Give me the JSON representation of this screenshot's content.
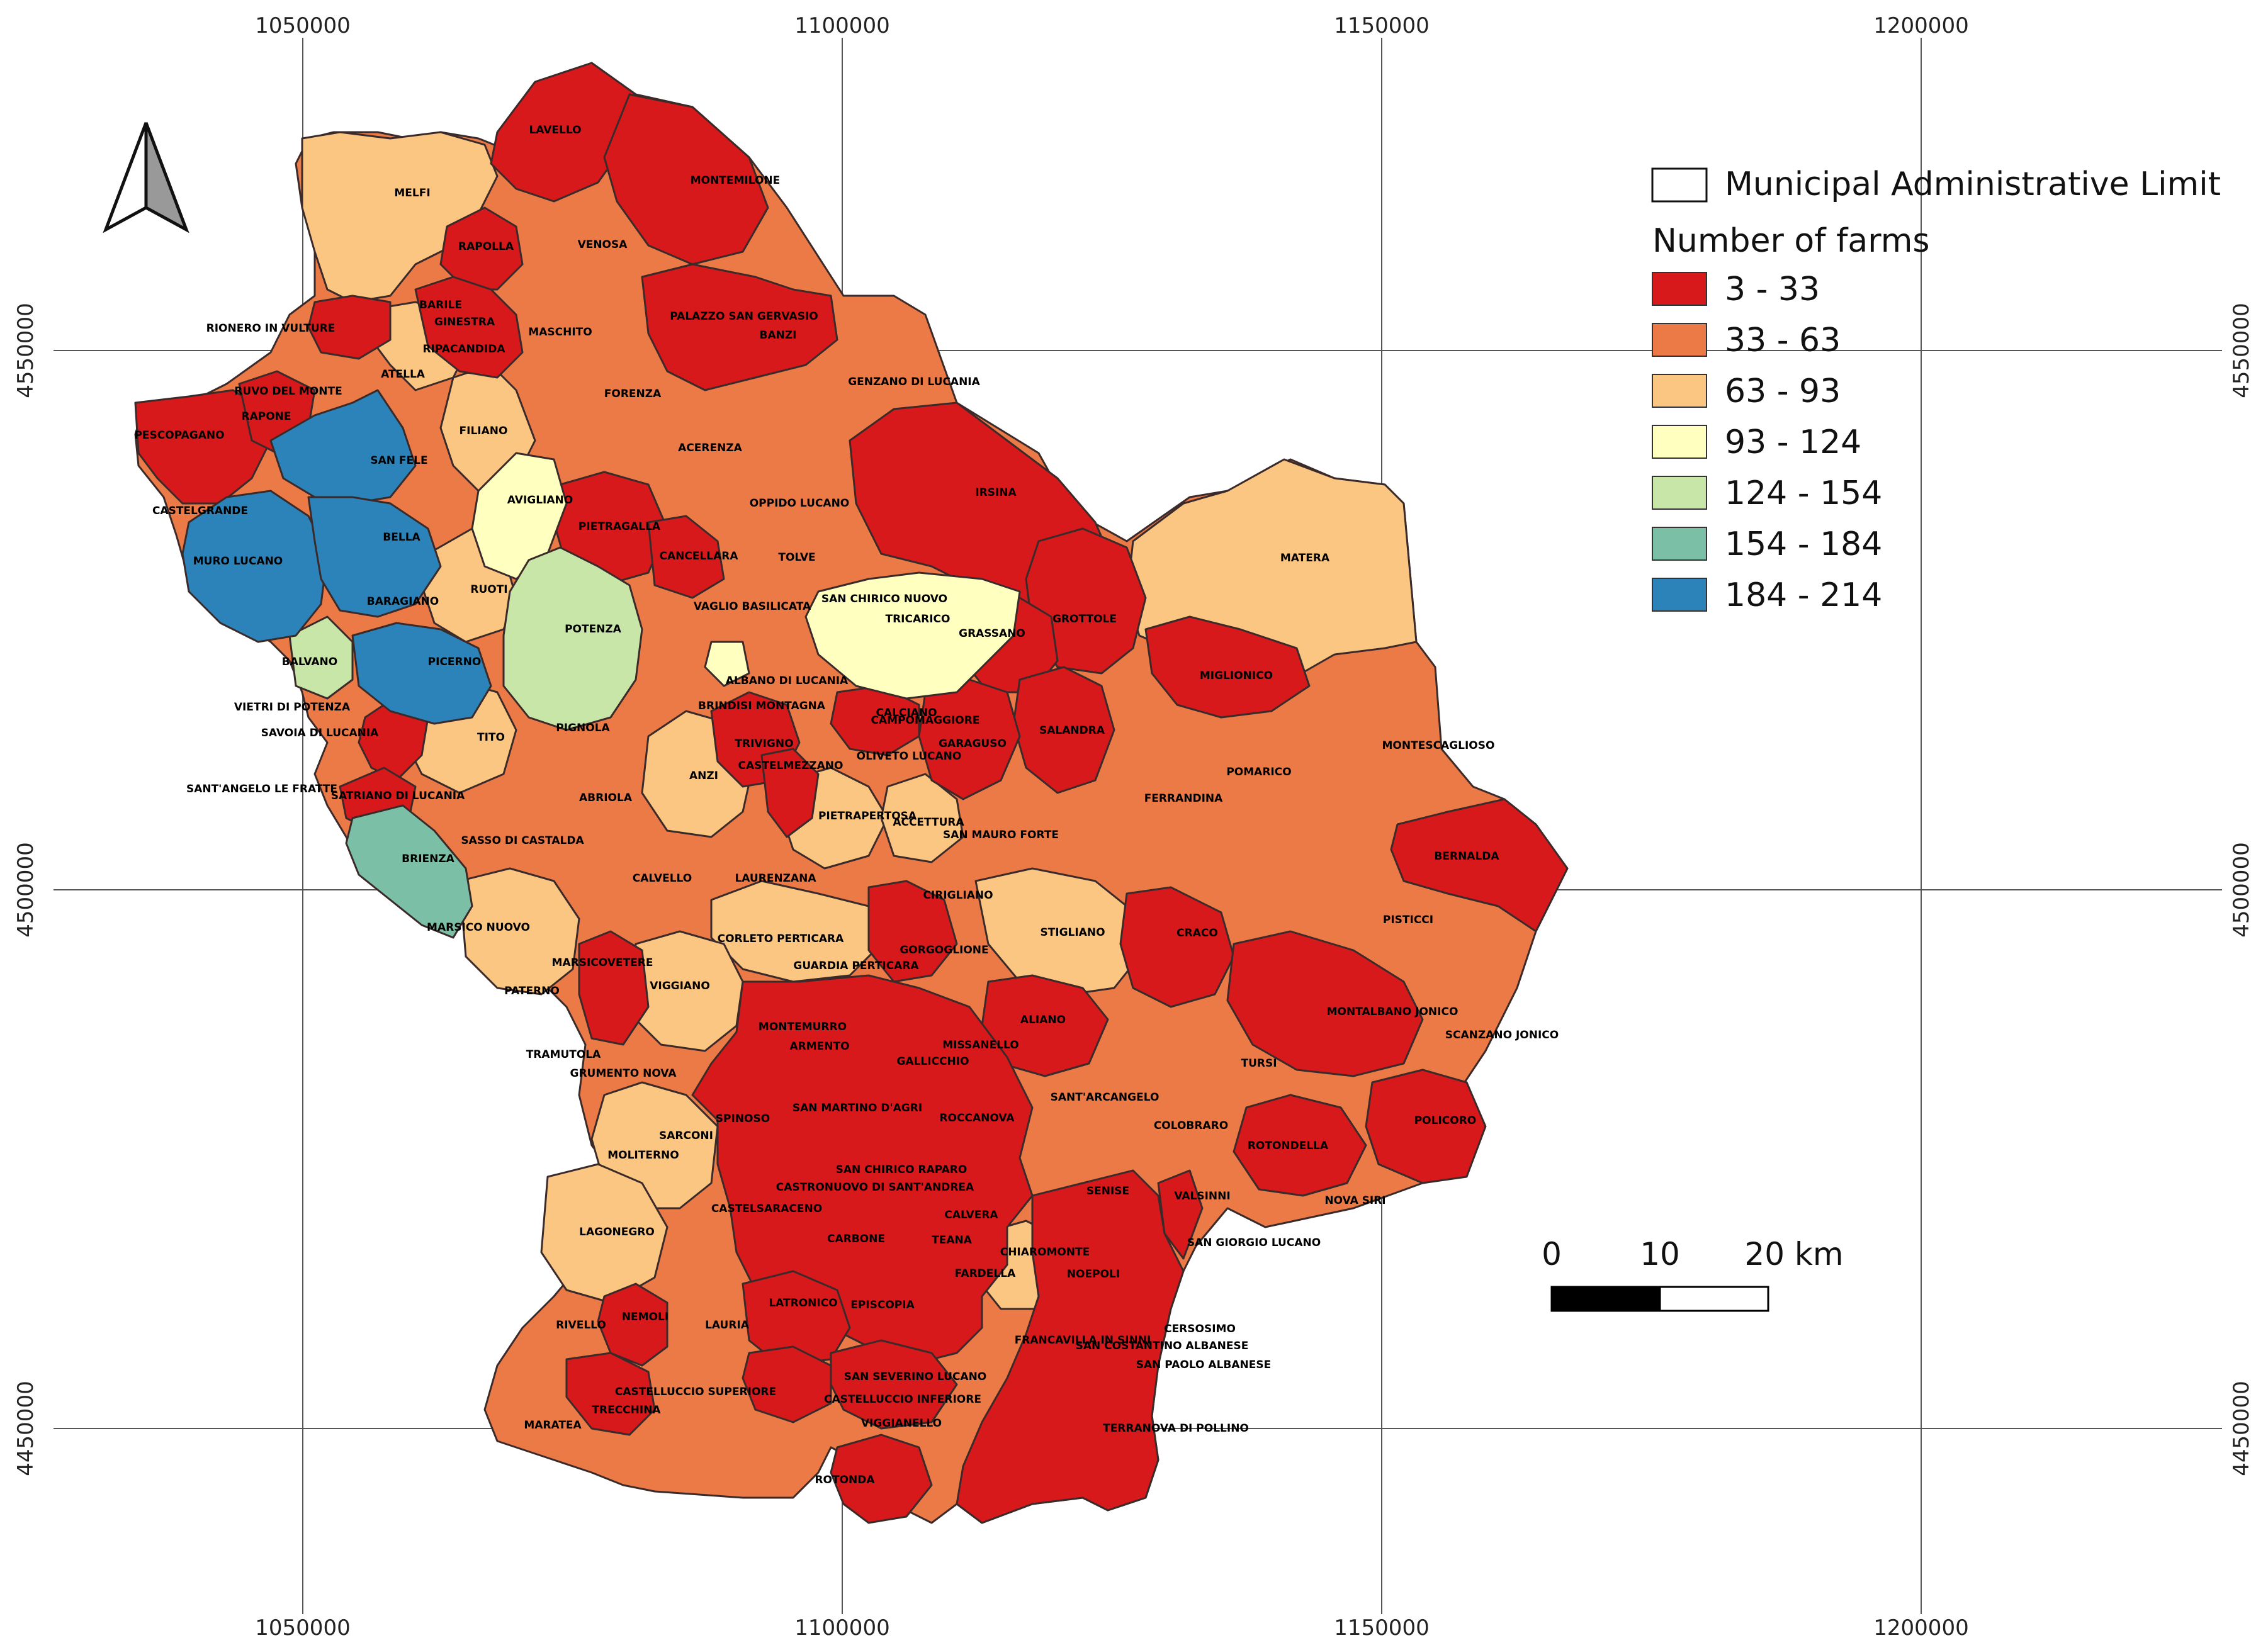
{
  "coordinates": {
    "x_labels": [
      "1050000",
      "1100000",
      "1150000",
      "1200000"
    ],
    "y_labels": [
      "4550000",
      "4500000",
      "4450000"
    ]
  },
  "legend": {
    "boundary_label": "Municipal Administrative Limit",
    "title": "Number of farms",
    "classes": [
      {
        "label": "3 - 33",
        "color": "#d7191c"
      },
      {
        "label": "33 - 63",
        "color": "#ec7a47"
      },
      {
        "label": "63 - 93",
        "color": "#fbc582"
      },
      {
        "label": "93 - 124",
        "color": "#ffffbf"
      },
      {
        "label": "124 - 154",
        "color": "#c8e6a7"
      },
      {
        "label": "154 - 184",
        "color": "#7bbfa6"
      },
      {
        "label": "184 - 214",
        "color": "#2b83ba"
      }
    ]
  },
  "scale_bar": {
    "labels": [
      "0",
      "10",
      "20 km"
    ]
  },
  "north_arrow": {
    "icon": "north-arrow-icon"
  },
  "municipalities": [
    "LAVELLO",
    "MONTEMILONE",
    "MELFI",
    "RAPOLLA",
    "VENOSA",
    "RIONERO IN VULTURE",
    "BARILE",
    "GINESTRA",
    "MASCHITO",
    "PALAZZO SAN GERVASIO",
    "BANZI",
    "RIPACANDIDA",
    "ATELLA",
    "RUVO DEL MONTE",
    "RAPONE",
    "PESCOPAGANO",
    "FORENZA",
    "GENZANO DI LUCANIA",
    "FILIANO",
    "SAN FELE",
    "ACERENZA",
    "IRSINA",
    "CASTELGRANDE",
    "AVIGLIANO",
    "OPPIDO LUCANO",
    "BELLA",
    "PIETRAGALLA",
    "CANCELLARA",
    "TOLVE",
    "MURO LUCANO",
    "MATERA",
    "RUOTI",
    "SAN CHIRICO NUOVO",
    "BARAGIANO",
    "VAGLIO BASILICATA",
    "TRICARICO",
    "GROTTOLE",
    "POTENZA",
    "GRASSANO",
    "BALVANO",
    "PICERNO",
    "MIGLIONICO",
    "ALBANO DI LUCANIA",
    "VIETRI DI POTENZA",
    "BRINDISI MONTAGNA",
    "CALCIANO",
    "CAMPOMAGGIORE",
    "SAVOIA DI LUCANIA",
    "SALANDRA",
    "TITO",
    "PIGNOLA",
    "TRIVIGNO",
    "GARAGUSO",
    "MONTESCAGLIOSO",
    "CASTELMEZZANO",
    "OLIVETO LUCANO",
    "POMARICO",
    "SANT'ANGELO LE FRATTE",
    "SATRIANO DI LUCANIA",
    "ANZI",
    "ABRIOLA",
    "FERRANDINA",
    "PIETRAPERTOSA",
    "ACCETTURA",
    "SAN MAURO FORTE",
    "SASSO DI CASTALDA",
    "BERNALDA",
    "BRIENZA",
    "CALVELLO",
    "LAURENZANA",
    "CIRIGLIANO",
    "PISTICCI",
    "MARSICO NUOVO",
    "CORLETO PERTICARA",
    "STIGLIANO",
    "CRACO",
    "GORGOGLIONE",
    "GUARDIA PERTICARA",
    "MARSICOVETERE",
    "VIGGIANO",
    "PATERNO",
    "ALIANO",
    "MONTALBANO JONICO",
    "MONTEMURRO",
    "ARMENTO",
    "MISSANELLO",
    "SCANZANO JONICO",
    "GALLICCHIO",
    "TRAMUTOLA",
    "TURSI",
    "GRUMENTO NOVA",
    "SANT'ARCANGELO",
    "SPINOSO",
    "SAN MARTINO D'AGRI",
    "ROCCANOVA",
    "COLOBRARO",
    "SARCONI",
    "ROTONDELLA",
    "POLICORO",
    "MOLITERNO",
    "SAN CHIRICO RAPARO",
    "CASTRONUOVO DI SANT'ANDREA",
    "SENISE",
    "VALSINNI",
    "NOVA SIRI",
    "CASTELSARACENO",
    "CALVERA",
    "LAGONEGRO",
    "CARBONE",
    "TEANA",
    "SAN GIORGIO LUCANO",
    "CHIAROMONTE",
    "FARDELLA",
    "NOEPOLI",
    "LATRONICO",
    "EPISCOPIA",
    "RIVELLO",
    "NEMOLI",
    "LAURIA",
    "CERSOSIMO",
    "FRANCAVILLA IN SINNI",
    "SAN COSTANTINO ALBANESE",
    "SAN PAOLO ALBANESE",
    "SAN SEVERINO LUCANO",
    "CASTELLUCCIO SUPERIORE",
    "CASTELLUCCIO INFERIORE",
    "TRECCHINA",
    "MARATEA",
    "VIGGIANELLO",
    "TERRANOVA DI POLLINO",
    "ROTONDA"
  ]
}
